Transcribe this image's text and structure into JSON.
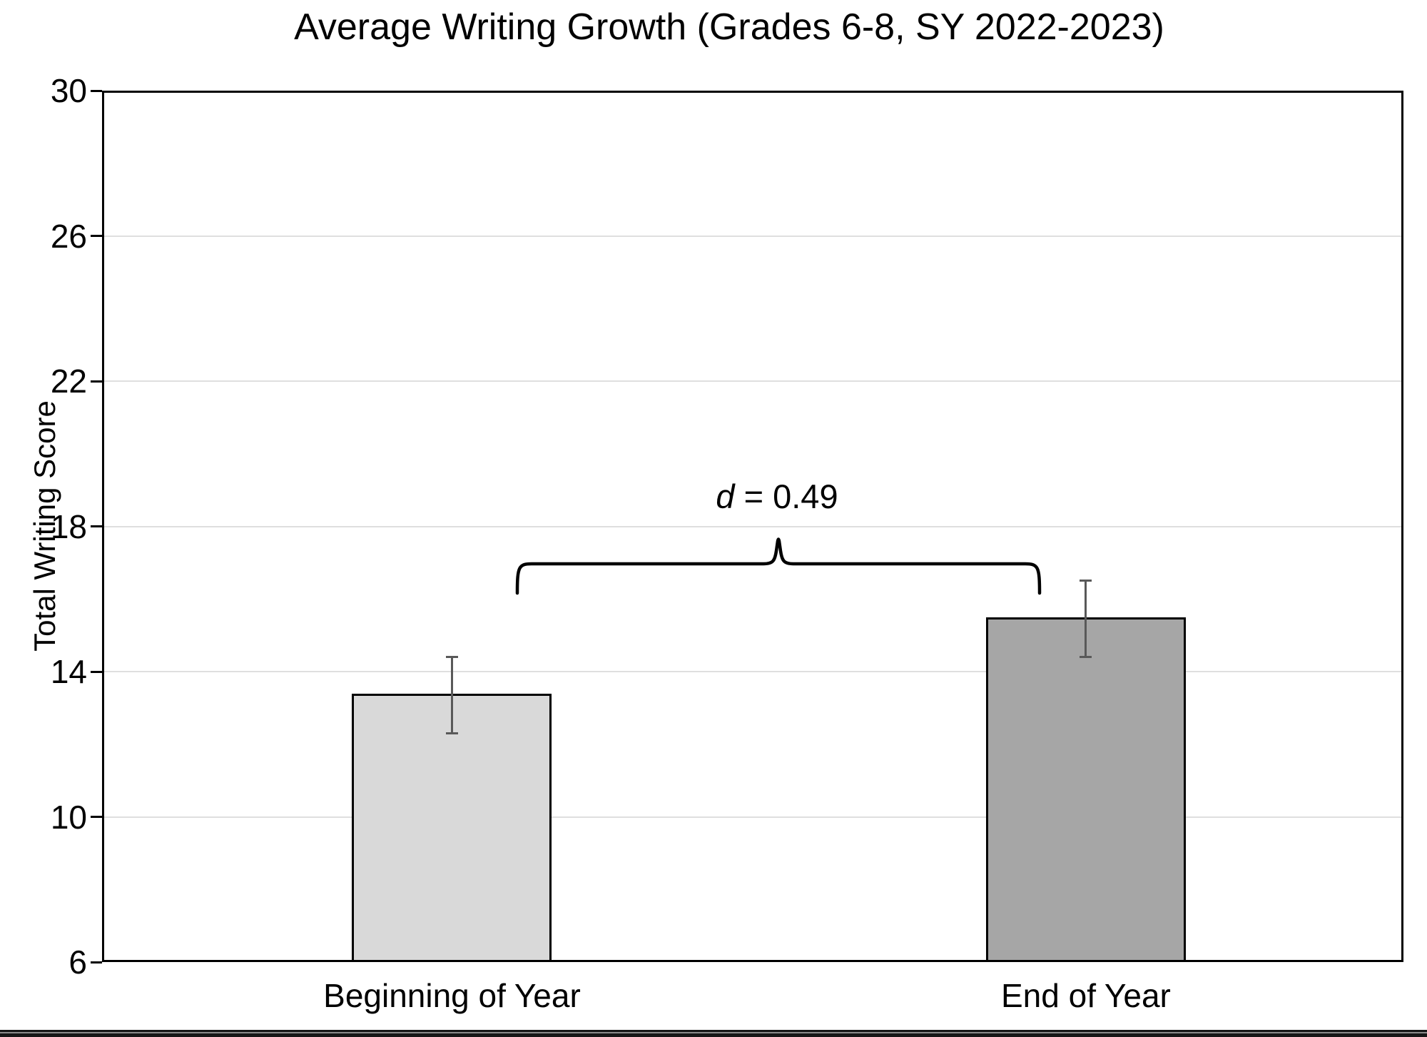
{
  "page": {
    "background": "#ffffff"
  },
  "chart_data": {
    "type": "bar",
    "title": "Average Writing Growth (Grades 6-8, SY 2022-2023)",
    "ylabel": "Total Writing Score",
    "xlabel": "",
    "categories": [
      "Beginning of Year",
      "End of Year"
    ],
    "values": [
      13.4,
      15.5
    ],
    "error_bars": {
      "upper": [
        14.4,
        16.5
      ],
      "lower": [
        12.3,
        14.4
      ]
    },
    "ylim": [
      6,
      30
    ],
    "yticks": [
      6,
      10,
      14,
      18,
      22,
      26,
      30
    ],
    "grid": true,
    "legend": false,
    "bar_colors": [
      "#d9d9d9",
      "#a6a6a6"
    ],
    "bar_border_color": "#000000",
    "error_bar_color": "#595959",
    "gridline_color": "#dfdfdf",
    "frame_color": "#000000",
    "annotation": {
      "text": "d = 0.49",
      "symbol": "d",
      "rest": " = 0.49",
      "shape": "curly-brace-between-bars"
    }
  }
}
